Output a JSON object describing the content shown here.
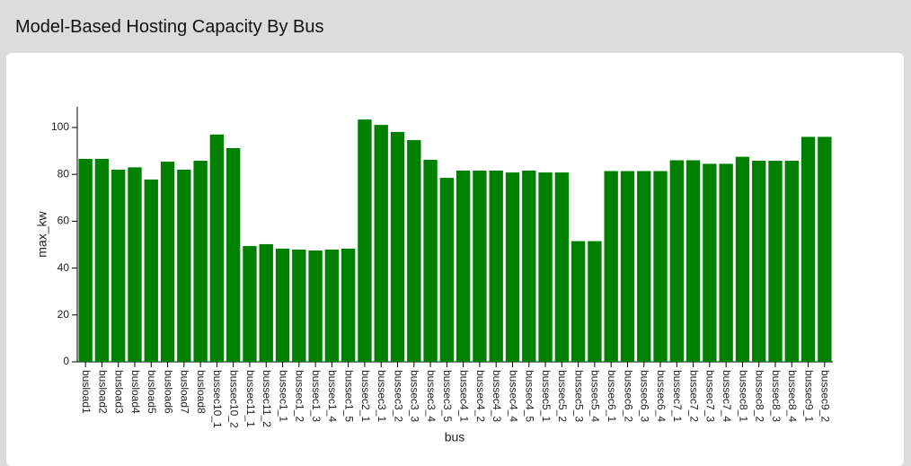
{
  "chart_data": {
    "type": "bar",
    "title": "Model-Based Hosting Capacity By Bus",
    "x_label": "bus",
    "y_label": "max_kw",
    "categories": [
      "busload1",
      "busload2",
      "busload3",
      "busload4",
      "busload5",
      "busload6",
      "busload7",
      "busload8",
      "bussec10_1",
      "bussec10_2",
      "bussec11_1",
      "bussec11_2",
      "bussec1_1",
      "bussec1_2",
      "bussec1_3",
      "bussec1_4",
      "bussec1_5",
      "bussec2_1",
      "bussec3_1",
      "bussec3_2",
      "bussec3_3",
      "bussec3_4",
      "bussec3_5",
      "bussec4_1",
      "bussec4_2",
      "bussec4_3",
      "bussec4_4",
      "bussec4_5",
      "bussec5_1",
      "bussec5_2",
      "bussec5_3",
      "bussec5_4",
      "bussec6_1",
      "bussec6_2",
      "bussec6_3",
      "bussec6_4",
      "bussec7_1",
      "bussec7_2",
      "bussec7_3",
      "bussec7_4",
      "bussec8_1",
      "bussec8_2",
      "bussec8_3",
      "bussec8_4",
      "bussec9_1",
      "bussec9_2"
    ],
    "values": [
      86.6,
      86.6,
      82,
      83,
      77.8,
      85.4,
      82,
      85.8,
      97,
      91.2,
      49.4,
      50.2,
      48.3,
      47.9,
      47.5,
      47.9,
      48.3,
      103.4,
      101.1,
      98.1,
      94.6,
      86.2,
      78.5,
      81.6,
      81.6,
      81.6,
      80.8,
      81.6,
      80.8,
      80.8,
      51.5,
      51.5,
      81.4,
      81.4,
      81.4,
      81.4,
      86,
      86,
      84.5,
      84.5,
      87.5,
      85.8,
      85.8,
      85.8,
      96,
      96
    ],
    "color": "#008000",
    "ylim": [
      0,
      108.8
    ],
    "yticks": [
      0,
      20,
      40,
      60,
      80,
      100
    ]
  }
}
